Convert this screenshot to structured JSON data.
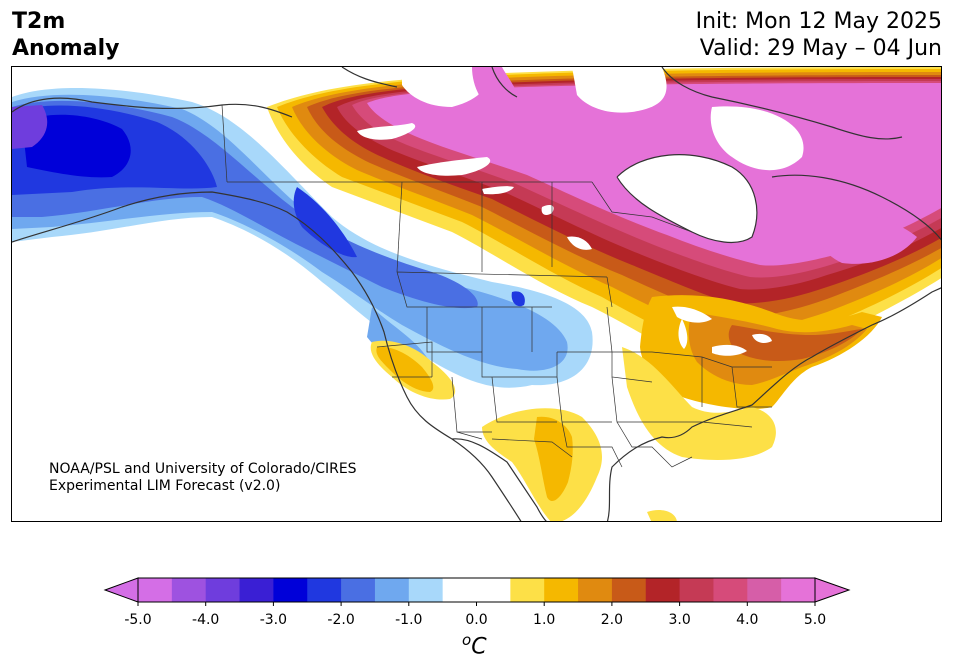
{
  "header": {
    "title_line1": "T2m",
    "title_line2": "Anomaly",
    "init": "Init: Mon 12 May 2025",
    "valid": "Valid: 29 May – 04 Jun"
  },
  "credit": {
    "line1": "NOAA/PSL and University of Colorado/CIRES",
    "line2": "Experimental LIM Forecast (v2.0)"
  },
  "colorbar": {
    "ticks": [
      "-5.0",
      "-4.0",
      "-3.0",
      "-2.0",
      "-1.0",
      "0.0",
      "1.0",
      "2.0",
      "3.0",
      "4.0",
      "5.0"
    ],
    "colors": [
      "#d46ee6",
      "#9e52e0",
      "#6f3ddd",
      "#3a1fd4",
      "#0000d9",
      "#2038e0",
      "#4a6fe3",
      "#6fa8ef",
      "#a8d8fa",
      "#ffffff",
      "#ffffff",
      "#fde047",
      "#f5b800",
      "#e08a10",
      "#c85a18",
      "#b32428",
      "#c53a55",
      "#d64b7a",
      "#d65ea8",
      "#e572d8"
    ],
    "unit_base": "o",
    "unit_letter": "C"
  },
  "map": {
    "colors": {
      "cold_3": "#0000d9",
      "cold_2": "#2038e0",
      "cold_1": "#4a6fe3",
      "cool_2": "#6fa8ef",
      "cool_1": "#a8d8fa",
      "warm_1": "#fde047",
      "warm_2": "#f5b800",
      "warm_3": "#e08a10",
      "hot_1": "#c85a18",
      "hot_2": "#b32428",
      "hot_3": "#c53a55",
      "hot_4": "#d64b7a",
      "hot_5": "#e572d8",
      "purple_1": "#6f3ddd"
    }
  }
}
